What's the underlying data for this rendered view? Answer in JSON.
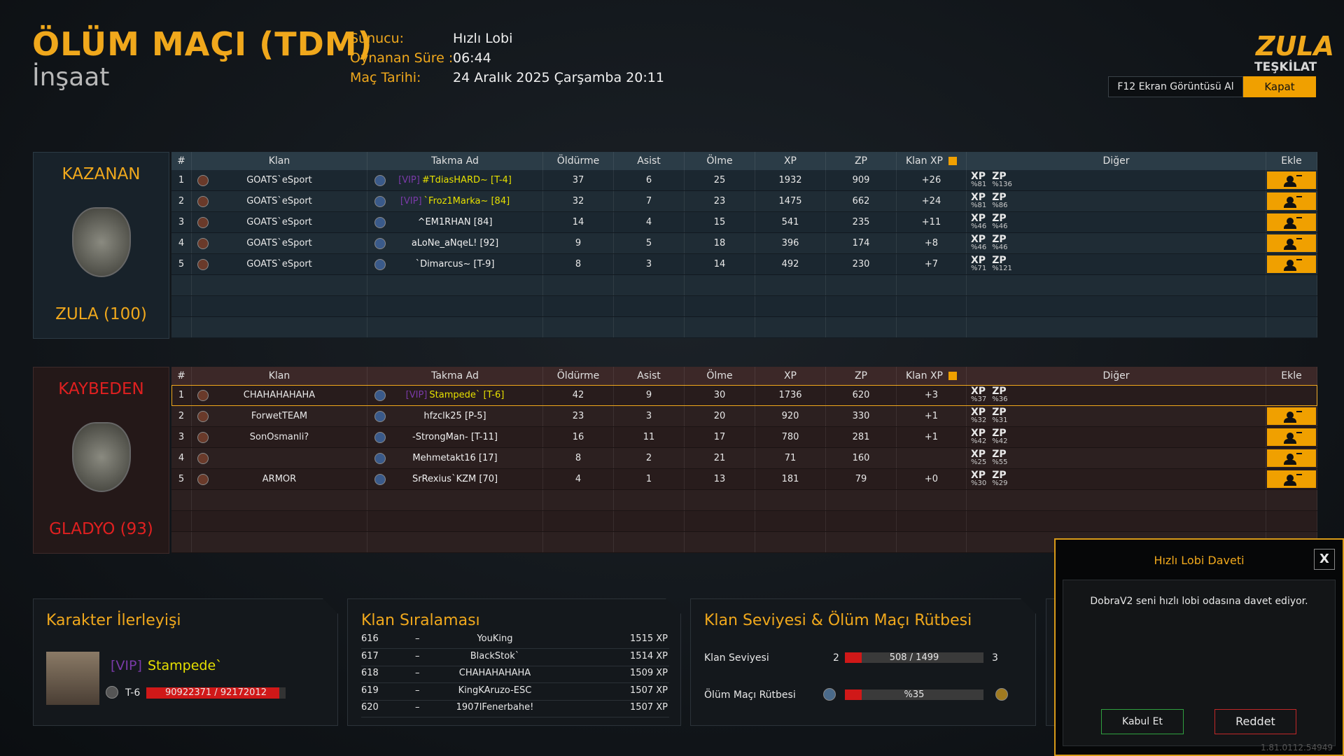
{
  "header": {
    "title": "ÖLÜM MAÇI (TDM)",
    "map": "İnşaat",
    "info": [
      {
        "label": "Sunucu:",
        "value": "Hızlı Lobi"
      },
      {
        "label": "Oynanan Süre :",
        "value": "06:44"
      },
      {
        "label": "Maç Tarihi:",
        "value": "24 Aralık 2025 Çarşamba 20:11"
      }
    ],
    "logo": {
      "top": "ZULA",
      "bottom": "TEŞKİLAT"
    },
    "screenshot_button": "F12 Ekran Görüntüsü Al",
    "close_button": "Kapat"
  },
  "columns": [
    "#",
    "Klan",
    "Takma Ad",
    "Öldürme",
    "Asist",
    "Ölme",
    "XP",
    "ZP",
    "Klan XP",
    "Diğer",
    "Ekle"
  ],
  "teams": [
    {
      "status": "KAZANAN",
      "name": "ZULA (100)",
      "rows": [
        {
          "rank": "1",
          "clan": "GOATS`eSport",
          "vip": "[VIP]",
          "nick": "#TdiasHARD~ [T-4]",
          "kills": "37",
          "assists": "6",
          "deaths": "25",
          "xp": "1932",
          "zp": "909",
          "clan_xp": "+26",
          "other": [
            {
              "label": "XP",
              "pct": "%81"
            },
            {
              "label": "ZP",
              "pct": "%136"
            }
          ],
          "add": true
        },
        {
          "rank": "2",
          "clan": "GOATS`eSport",
          "vip": "[VIP]",
          "nick": "`Froz1Marka~ [84]",
          "kills": "32",
          "assists": "7",
          "deaths": "23",
          "xp": "1475",
          "zp": "662",
          "clan_xp": "+24",
          "other": [
            {
              "label": "XP",
              "pct": "%81"
            },
            {
              "label": "ZP",
              "pct": "%86"
            }
          ],
          "add": true
        },
        {
          "rank": "3",
          "clan": "GOATS`eSport",
          "vip": null,
          "nick": "^EM1RHAN [84]",
          "kills": "14",
          "assists": "4",
          "deaths": "15",
          "xp": "541",
          "zp": "235",
          "clan_xp": "+11",
          "other": [
            {
              "label": "XP",
              "pct": "%46"
            },
            {
              "label": "ZP",
              "pct": "%46"
            }
          ],
          "add": true
        },
        {
          "rank": "4",
          "clan": "GOATS`eSport",
          "vip": null,
          "nick": "aLoNe_aNqeL! [92]",
          "kills": "9",
          "assists": "5",
          "deaths": "18",
          "xp": "396",
          "zp": "174",
          "clan_xp": "+8",
          "other": [
            {
              "label": "XP",
              "pct": "%46"
            },
            {
              "label": "ZP",
              "pct": "%46"
            }
          ],
          "add": true
        },
        {
          "rank": "5",
          "clan": "GOATS`eSport",
          "vip": null,
          "nick": "`Dimarcus~ [T-9]",
          "kills": "8",
          "assists": "3",
          "deaths": "14",
          "xp": "492",
          "zp": "230",
          "clan_xp": "+7",
          "other": [
            {
              "label": "XP",
              "pct": "%71"
            },
            {
              "label": "ZP",
              "pct": "%121"
            }
          ],
          "add": true
        }
      ]
    },
    {
      "status": "KAYBEDEN",
      "name": "GLADYO (93)",
      "rows": [
        {
          "rank": "1",
          "clan": "CHAHAHAHAHA",
          "vip": "[VIP]",
          "nick": "Stampede` [T-6]",
          "kills": "42",
          "assists": "9",
          "deaths": "30",
          "xp": "1736",
          "zp": "620",
          "clan_xp": "+3",
          "other": [
            {
              "label": "XP",
              "pct": "%37"
            },
            {
              "label": "ZP",
              "pct": "%36"
            }
          ],
          "add": false
        },
        {
          "rank": "2",
          "clan": "ForwetTEAM",
          "vip": null,
          "nick": "hfzclk25 [P-5]",
          "kills": "23",
          "assists": "3",
          "deaths": "20",
          "xp": "920",
          "zp": "330",
          "clan_xp": "+1",
          "other": [
            {
              "label": "XP",
              "pct": "%32"
            },
            {
              "label": "ZP",
              "pct": "%31"
            }
          ],
          "add": true
        },
        {
          "rank": "3",
          "clan": "SonOsmanli?",
          "vip": null,
          "nick": "-StrongMan- [T-11]",
          "kills": "16",
          "assists": "11",
          "deaths": "17",
          "xp": "780",
          "zp": "281",
          "clan_xp": "+1",
          "other": [
            {
              "label": "XP",
              "pct": "%42"
            },
            {
              "label": "ZP",
              "pct": "%42"
            }
          ],
          "add": true
        },
        {
          "rank": "4",
          "clan": null,
          "vip": null,
          "nick": "Mehmetakt16 [17]",
          "kills": "8",
          "assists": "2",
          "deaths": "21",
          "xp": "71",
          "zp": "160",
          "clan_xp": null,
          "other": [
            {
              "label": "XP",
              "pct": "%25"
            },
            {
              "label": "ZP",
              "pct": "%55"
            }
          ],
          "add": true
        },
        {
          "rank": "5",
          "clan": "ARMOR",
          "vip": null,
          "nick": "SrRexius`KZM [70]",
          "kills": "4",
          "assists": "1",
          "deaths": "13",
          "xp": "181",
          "zp": "79",
          "clan_xp": "+0",
          "other": [
            {
              "label": "XP",
              "pct": "%30"
            },
            {
              "label": "ZP",
              "pct": "%29"
            }
          ],
          "add": true
        }
      ]
    }
  ],
  "character": {
    "title": "Karakter İlerleyişi",
    "vip": "[VIP]",
    "name": "Stampede`",
    "rank": "T-6",
    "progress": "90922371 / 92172012"
  },
  "clan_ranking": {
    "title": "Klan Sıralaması",
    "separator": "–",
    "rows": [
      {
        "rank": "616",
        "name": "YouKing",
        "xp": "1515 XP"
      },
      {
        "rank": "617",
        "name": "BlackStok`",
        "xp": "1514 XP"
      },
      {
        "rank": "618",
        "name": "CHAHAHAHAHA",
        "xp": "1509 XP"
      },
      {
        "rank": "619",
        "name": "KingKAruzo-ESC",
        "xp": "1507 XP"
      },
      {
        "rank": "620",
        "name": "1907lFenerbahe!",
        "xp": "1507 XP"
      }
    ]
  },
  "clan_level": {
    "title": "Klan Seviyesi & Ölüm Maçı Rütbesi",
    "level_label": "Klan Seviyesi",
    "level": "2",
    "level_progress": "508 / 1499",
    "next_level": "3",
    "tdm_label": "Ölüm Maçı Rütbesi",
    "tdm_progress": "%35"
  },
  "invite": {
    "title": "Hızlı Lobi Daveti",
    "close": "X",
    "message": "DobraV2 seni hızlı lobi odasına davet ediyor.",
    "accept": "Kabul Et",
    "reject": "Reddet"
  },
  "version": "1.81.0112.54949"
}
